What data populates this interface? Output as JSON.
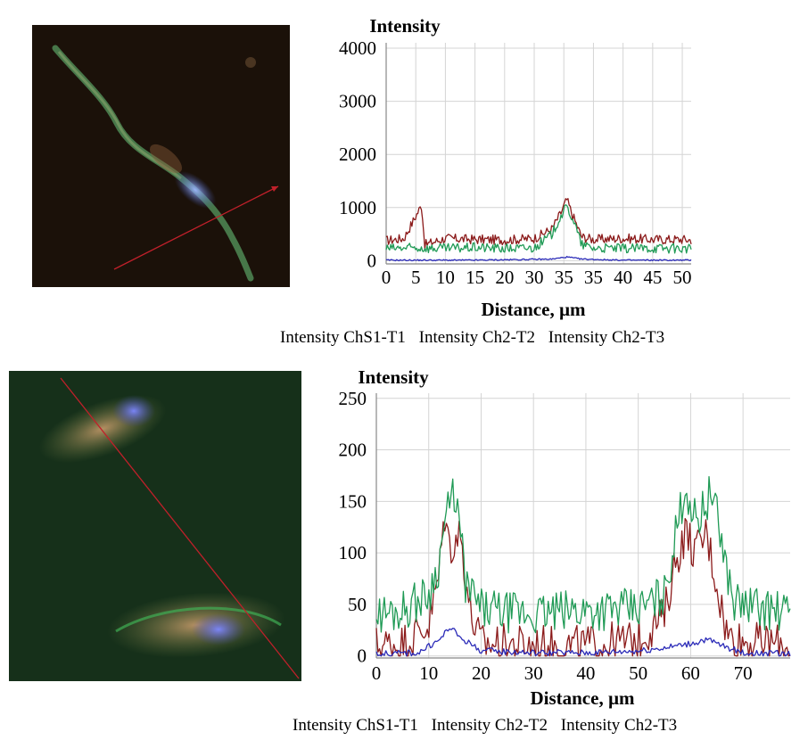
{
  "colors": {
    "series_red": "#8b1a1a",
    "series_green": "#1f9a55",
    "series_blue": "#2b2bb8",
    "grid": "#d4d4d4",
    "scan_line": "#c0202a"
  },
  "panels": [
    {
      "micrograph": {
        "icon": "fluorescence-micrograph-elongated-cell",
        "background": "#1b1109"
      },
      "legend": [
        "Intensity ChS1-T1",
        "Intensity Ch2-T2",
        "Intensity Ch2-T3"
      ]
    },
    {
      "micrograph": {
        "icon": "fluorescence-micrograph-two-cells",
        "background": "#16301a"
      },
      "legend": [
        "Intensity ChS1-T1",
        "Intensity Ch2-T2",
        "Intensity Ch2-T3"
      ]
    }
  ],
  "chart_data": [
    {
      "type": "line",
      "ylabel": "Intensity",
      "xlabel": "Distance, µm",
      "xticks": [
        "0",
        "5",
        "10",
        "15",
        "20",
        "30",
        "35",
        "35",
        "40",
        "45",
        "50"
      ],
      "yticks": [
        0,
        1000,
        2000,
        3000,
        4000
      ],
      "xlim": [
        0,
        10.3
      ],
      "ylim": [
        -60,
        4100
      ],
      "grid": true,
      "series": [
        {
          "color": "#8b1a1a",
          "points": [
            [
              0,
              380
            ],
            [
              0.6,
              420
            ],
            [
              1.2,
              1050
            ],
            [
              1.3,
              300
            ],
            [
              2,
              420
            ],
            [
              3,
              400
            ],
            [
              4,
              390
            ],
            [
              5,
              420
            ],
            [
              5.6,
              600
            ],
            [
              5.9,
              900
            ],
            [
              6.1,
              1150
            ],
            [
              6.3,
              850
            ],
            [
              6.6,
              450
            ],
            [
              7,
              400
            ],
            [
              8,
              420
            ],
            [
              9,
              400
            ],
            [
              10,
              400
            ],
            [
              10.3,
              390
            ]
          ]
        },
        {
          "color": "#1f9a55",
          "points": [
            [
              0,
              230
            ],
            [
              1,
              240
            ],
            [
              2,
              230
            ],
            [
              3,
              250
            ],
            [
              4,
              230
            ],
            [
              5,
              240
            ],
            [
              5.6,
              500
            ],
            [
              5.9,
              850
            ],
            [
              6.1,
              1000
            ],
            [
              6.3,
              800
            ],
            [
              6.6,
              300
            ],
            [
              7,
              240
            ],
            [
              8,
              230
            ],
            [
              9,
              240
            ],
            [
              10,
              230
            ],
            [
              10.3,
              220
            ]
          ]
        },
        {
          "color": "#2b2bb8",
          "points": [
            [
              0,
              10
            ],
            [
              3,
              10
            ],
            [
              5.6,
              30
            ],
            [
              6.1,
              70
            ],
            [
              6.6,
              30
            ],
            [
              8,
              10
            ],
            [
              10.3,
              10
            ]
          ]
        }
      ]
    },
    {
      "type": "line",
      "ylabel": "Intensity",
      "xlabel": "Distance, µm",
      "xticks": [
        "0",
        "10",
        "20",
        "30",
        "40",
        "50",
        "60",
        "70"
      ],
      "yticks": [
        0,
        50,
        100,
        150,
        200,
        250
      ],
      "xlim": [
        0,
        79
      ],
      "ylim": [
        -2,
        255
      ],
      "grid": true,
      "series": [
        {
          "color": "#8b1a1a",
          "points": [
            [
              0,
              10
            ],
            [
              5,
              12
            ],
            [
              10,
              30
            ],
            [
              12,
              80
            ],
            [
              13,
              140
            ],
            [
              14,
              105
            ],
            [
              16,
              120
            ],
            [
              18,
              40
            ],
            [
              20,
              12
            ],
            [
              30,
              10
            ],
            [
              40,
              10
            ],
            [
              50,
              15
            ],
            [
              55,
              40
            ],
            [
              57,
              90
            ],
            [
              59,
              120
            ],
            [
              61,
              100
            ],
            [
              63,
              120
            ],
            [
              65,
              70
            ],
            [
              67,
              20
            ],
            [
              70,
              15
            ],
            [
              79,
              10
            ]
          ]
        },
        {
          "color": "#1f9a55",
          "points": [
            [
              0,
              40
            ],
            [
              5,
              45
            ],
            [
              10,
              60
            ],
            [
              12,
              90
            ],
            [
              13,
              130
            ],
            [
              15,
              160
            ],
            [
              16,
              120
            ],
            [
              17,
              70
            ],
            [
              20,
              45
            ],
            [
              30,
              40
            ],
            [
              40,
              45
            ],
            [
              50,
              45
            ],
            [
              55,
              60
            ],
            [
              58,
              140
            ],
            [
              59,
              165
            ],
            [
              61,
              130
            ],
            [
              64,
              160
            ],
            [
              66,
              110
            ],
            [
              68,
              55
            ],
            [
              70,
              50
            ],
            [
              75,
              45
            ],
            [
              79,
              40
            ]
          ]
        },
        {
          "color": "#2b2bb8",
          "points": [
            [
              0,
              2
            ],
            [
              8,
              3
            ],
            [
              12,
              15
            ],
            [
              14,
              28
            ],
            [
              16,
              18
            ],
            [
              20,
              5
            ],
            [
              30,
              3
            ],
            [
              40,
              3
            ],
            [
              50,
              5
            ],
            [
              55,
              8
            ],
            [
              60,
              12
            ],
            [
              63,
              16
            ],
            [
              66,
              10
            ],
            [
              70,
              3
            ],
            [
              79,
              2
            ]
          ]
        }
      ]
    }
  ]
}
